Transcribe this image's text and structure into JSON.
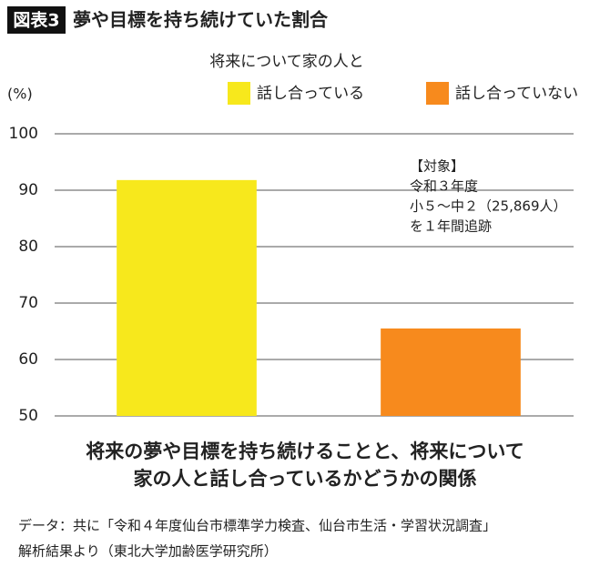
{
  "chart_data": {
    "type": "bar",
    "badge": "図表3",
    "title": "夢や目標を持ち続けていた割合",
    "legend_title": "将来について家の人と",
    "y_unit": "(%)",
    "categories": [
      null,
      null
    ],
    "series": [
      {
        "name": "話し合っている",
        "color": "#f7e81c",
        "values": [
          91.8,
          null
        ]
      },
      {
        "name": "話し合っていない",
        "color": "#f78a1d",
        "values": [
          null,
          65.5
        ]
      }
    ],
    "ylim": [
      50,
      100
    ],
    "yticks": [
      50,
      60,
      70,
      80,
      90,
      100
    ],
    "grid": true,
    "annotation": [
      "【対象】",
      "令和３年度",
      "小５～中２（25,869人）",
      "を１年間追跡"
    ],
    "caption": [
      "将来の夢や目標を持ち続けることと、将来について",
      "家の人と話し合っているかどうかの関係"
    ],
    "source": [
      "データ：共に「令和４年度仙台市標準学力検査、仙台市生活・学習状況調査」",
      "解析結果より（東北大学加齢医学研究所）"
    ]
  }
}
